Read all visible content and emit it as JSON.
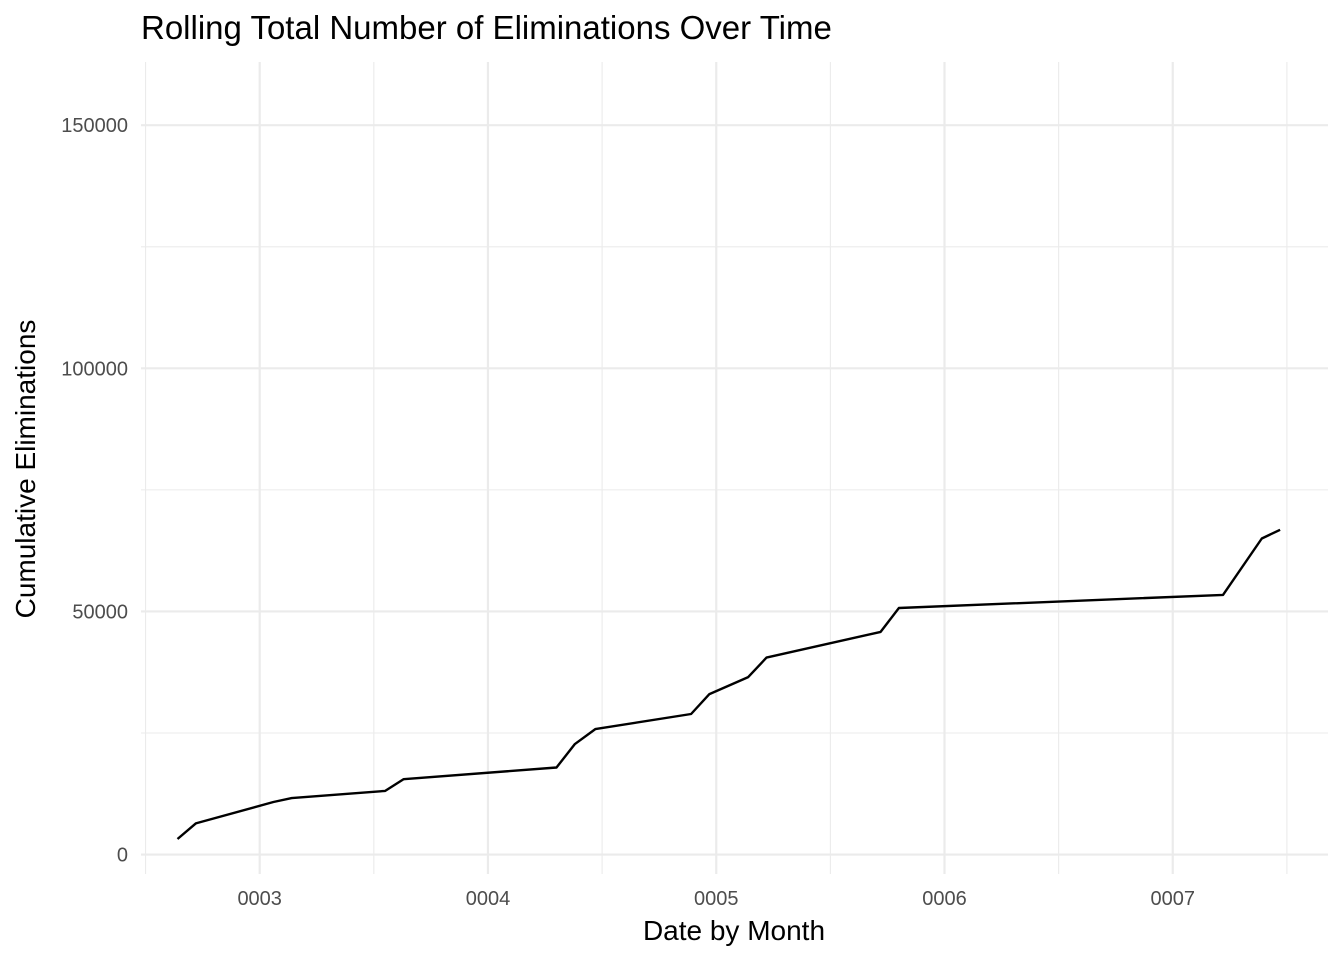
{
  "chart_data": {
    "type": "line",
    "title": "Rolling Total Number of Eliminations Over Time",
    "xlabel": "Date by Month",
    "ylabel": "Cumulative Eliminations",
    "x_ticks": [
      "0003",
      "0004",
      "0005",
      "0006",
      "0007"
    ],
    "y_ticks": [
      "0",
      "50000",
      "100000",
      "150000"
    ],
    "xlim": [
      2.48,
      7.68
    ],
    "ylim": [
      -4000,
      163000
    ],
    "grid": true,
    "legend": "none",
    "line_color": "#000000",
    "x": [
      2.64,
      2.72,
      3.06,
      3.14,
      3.55,
      3.63,
      4.3,
      4.38,
      4.47,
      4.89,
      4.97,
      5.14,
      5.22,
      5.72,
      5.8,
      7.22,
      7.39,
      7.47
    ],
    "y": [
      3200,
      6400,
      10800,
      11600,
      13100,
      15500,
      17900,
      22700,
      25800,
      28900,
      33000,
      36500,
      40500,
      45800,
      50700,
      53400,
      65000,
      66800
    ]
  }
}
